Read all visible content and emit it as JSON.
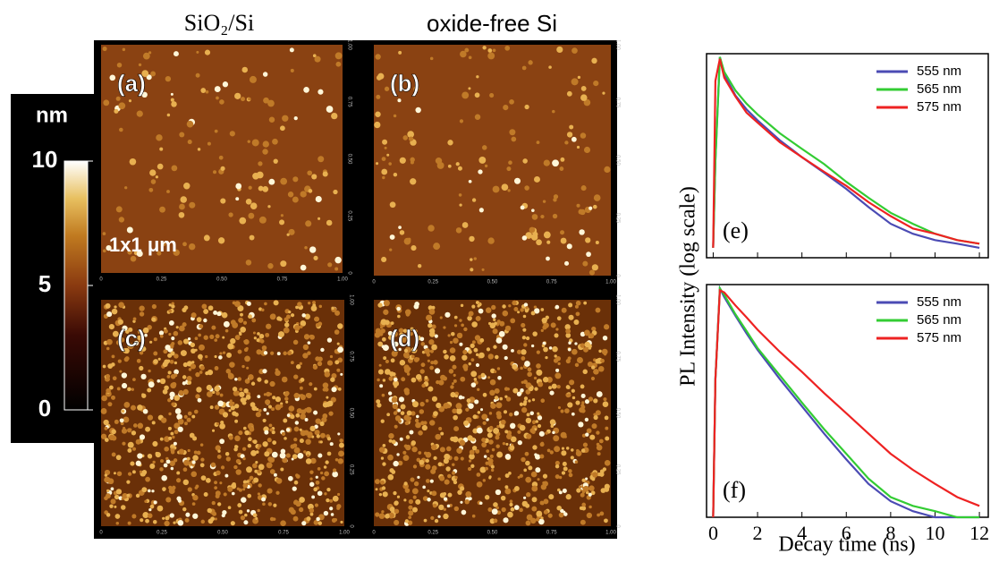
{
  "columns": [
    "SiO₂/Si",
    "oxide-free Si"
  ],
  "panels": [
    {
      "label": "(a)"
    },
    {
      "label": "(b)"
    },
    {
      "label": "(c)"
    },
    {
      "label": "(d)"
    }
  ],
  "scale_label": "1x1 μm",
  "afm_ticks": [
    "0",
    "0.25",
    "0.50",
    "0.75",
    "1.00"
  ],
  "colorbar": {
    "label": "nm",
    "ticks": [
      0,
      5,
      10
    ],
    "range": [
      0,
      10
    ]
  },
  "chart_data": [
    {
      "type": "line",
      "panel_label": "(e)",
      "y_label": "PL Intensity (log scale)",
      "log_scale": true,
      "legend": "upper-right",
      "x": [
        0,
        0.1,
        0.3,
        0.5,
        1,
        1.5,
        2,
        3,
        4,
        5,
        6,
        7,
        8,
        9,
        10,
        11,
        12
      ],
      "xlim": [
        -0.3,
        12.4
      ],
      "xticks": [
        0,
        2,
        4,
        6,
        8,
        10,
        12
      ],
      "ylim": [
        0.003,
        1.1
      ],
      "series": [
        {
          "name": "555 nm",
          "color": "#4b4bb4",
          "values": [
            0.004,
            0.05,
            1,
            0.6,
            0.33,
            0.22,
            0.16,
            0.09,
            0.055,
            0.035,
            0.022,
            0.013,
            0.008,
            0.006,
            0.005,
            0.0045,
            0.004
          ]
        },
        {
          "name": "565 nm",
          "color": "#33cc33",
          "values": [
            0.004,
            0.05,
            1,
            0.65,
            0.38,
            0.26,
            0.19,
            0.11,
            0.07,
            0.045,
            0.027,
            0.017,
            0.011,
            0.008,
            0.006,
            0.005,
            0.0045
          ]
        },
        {
          "name": "575 nm",
          "color": "#ee2222",
          "values": [
            0.004,
            0.5,
            0.95,
            0.55,
            0.32,
            0.2,
            0.15,
            0.085,
            0.055,
            0.036,
            0.024,
            0.015,
            0.01,
            0.007,
            0.006,
            0.005,
            0.0045
          ]
        }
      ]
    },
    {
      "type": "line",
      "panel_label": "(f)",
      "x_label": "Decay time (ns)",
      "log_scale": true,
      "legend": "upper-right",
      "x": [
        0,
        0.1,
        0.3,
        0.5,
        1,
        1.5,
        2,
        3,
        4,
        5,
        6,
        7,
        8,
        9,
        10,
        11,
        12
      ],
      "xlim": [
        -0.3,
        12.4
      ],
      "xticks": [
        0,
        2,
        4,
        6,
        8,
        10,
        12
      ],
      "ylim": [
        0.003,
        1.1
      ],
      "series": [
        {
          "name": "555 nm",
          "color": "#4b4bb4",
          "values": [
            0.003,
            0.1,
            1,
            0.8,
            0.5,
            0.32,
            0.21,
            0.1,
            0.05,
            0.025,
            0.013,
            0.007,
            0.0045,
            0.0035,
            0.003,
            0.003,
            0.003
          ]
        },
        {
          "name": "565 nm",
          "color": "#33cc33",
          "values": [
            0.003,
            0.1,
            1,
            0.85,
            0.52,
            0.34,
            0.22,
            0.11,
            0.055,
            0.028,
            0.015,
            0.008,
            0.005,
            0.004,
            0.0035,
            0.003,
            0.003
          ]
        },
        {
          "name": "575 nm",
          "color": "#ee2222",
          "values": [
            0.003,
            0.1,
            0.95,
            0.9,
            0.65,
            0.48,
            0.35,
            0.2,
            0.12,
            0.07,
            0.042,
            0.025,
            0.015,
            0.01,
            0.007,
            0.005,
            0.004
          ]
        }
      ]
    }
  ]
}
